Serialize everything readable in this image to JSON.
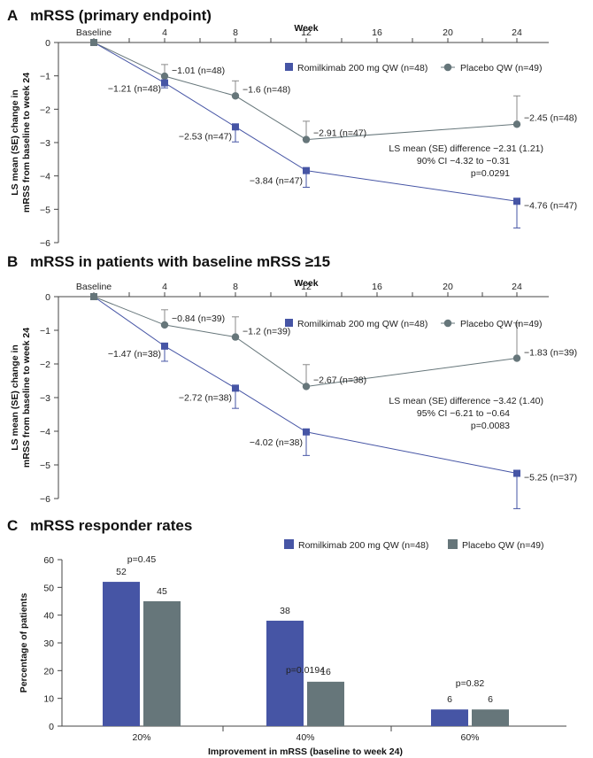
{
  "colors": {
    "romilkimab": "#4655a5",
    "placebo": "#66767a",
    "axis": "#444444",
    "error": "#8a8a8a"
  },
  "chart_data": [
    {
      "type": "line",
      "panel_letter": "A",
      "title": "mRSS (primary endpoint)",
      "x_axis_title": "Week",
      "x_ticks": [
        "Baseline",
        "4",
        "8",
        "12",
        "16",
        "20",
        "24"
      ],
      "ylabel": [
        "LS mean (SE) change in",
        "mRSS from baseline to week 24"
      ],
      "ylim": [
        -6,
        0
      ],
      "y_ticks": [
        "0",
        "−1",
        "−2",
        "−3",
        "−4",
        "−5",
        "−6"
      ],
      "legend_position": "top-right",
      "series": [
        {
          "name": "Romilkimab 200 mg QW (n=48)",
          "marker": "square",
          "x": [
            0,
            4,
            8,
            12,
            24
          ],
          "y": [
            0,
            -1.21,
            -2.53,
            -3.84,
            -4.76
          ],
          "err_lower": [
            0,
            0.15,
            0.45,
            0.5,
            0.8
          ],
          "labels": [
            "",
            "−1.21 (n=48)",
            "−2.53 (n=47)",
            "−3.84 (n=47)",
            "−4.76 (n=47)"
          ]
        },
        {
          "name": "Placebo QW (n=49)",
          "marker": "circle",
          "x": [
            0,
            4,
            8,
            12,
            24
          ],
          "y": [
            0,
            -1.01,
            -1.6,
            -2.91,
            -2.45
          ],
          "err_upper": [
            0,
            0.35,
            0.45,
            0.55,
            0.85
          ],
          "labels": [
            "",
            "−1.01 (n=48)",
            "−1.6 (n=48)",
            "−2.91 (n=47)",
            "−2.45 (n=48)"
          ]
        }
      ],
      "annotation": [
        "LS mean (SE) difference −2.31 (1.21)",
        "90% CI −4.32 to −0.31",
        "p=0.0291"
      ]
    },
    {
      "type": "line",
      "panel_letter": "B",
      "title": "mRSS in patients with baseline mRSS ≥15",
      "x_axis_title": "Week",
      "x_ticks": [
        "Baseline",
        "4",
        "8",
        "12",
        "16",
        "20",
        "24"
      ],
      "ylabel": [
        "LS mean (SE) change in",
        "mRSS from baseline to week 24"
      ],
      "ylim": [
        -6,
        0
      ],
      "y_ticks": [
        "0",
        "−1",
        "−2",
        "−3",
        "−4",
        "−5",
        "−6"
      ],
      "legend_position": "top-right",
      "series": [
        {
          "name": "Romilkimab 200 mg QW (n=48)",
          "marker": "square",
          "x": [
            0,
            4,
            8,
            12,
            24
          ],
          "y": [
            0,
            -1.47,
            -2.72,
            -4.02,
            -5.25
          ],
          "err_lower": [
            0,
            0.45,
            0.6,
            0.7,
            1.05
          ],
          "labels": [
            "",
            "−1.47 (n=38)",
            "−2.72 (n=38)",
            "−4.02 (n=38)",
            "−5.25 (n=37)"
          ]
        },
        {
          "name": "Placebo QW (n=49)",
          "marker": "circle",
          "x": [
            0,
            4,
            8,
            12,
            24
          ],
          "y": [
            0,
            -0.84,
            -1.2,
            -2.67,
            -1.83
          ],
          "err_upper": [
            0,
            0.45,
            0.6,
            0.65,
            1.05
          ],
          "labels": [
            "",
            "−0.84 (n=39)",
            "−1.2 (n=39)",
            "−2.67 (n=38)",
            "−1.83 (n=39)"
          ]
        }
      ],
      "annotation": [
        "LS mean (SE) difference −3.42 (1.40)",
        "95% CI −6.21 to −0.64",
        "p=0.0083"
      ]
    },
    {
      "type": "bar",
      "panel_letter": "C",
      "title": "mRSS responder rates",
      "categories": [
        "20%",
        "40%",
        "60%"
      ],
      "xlabel": "Improvement in mRSS (baseline to week 24)",
      "ylabel": "Percentage of patients",
      "ylim": [
        0,
        60
      ],
      "y_ticks": [
        "0",
        "10",
        "20",
        "30",
        "40",
        "50",
        "60"
      ],
      "legend_position": "top-right",
      "series": [
        {
          "name": "Romilkimab 200 mg QW (n=48)",
          "values": [
            52,
            38,
            6
          ],
          "value_labels": [
            "52",
            "38",
            "6"
          ]
        },
        {
          "name": "Placebo QW (n=49)",
          "values": [
            45,
            16,
            6
          ],
          "value_labels": [
            "45",
            "16",
            "6"
          ]
        }
      ],
      "p_values": [
        "p=0.45",
        "p=0.0194",
        "p=0.82"
      ]
    }
  ]
}
